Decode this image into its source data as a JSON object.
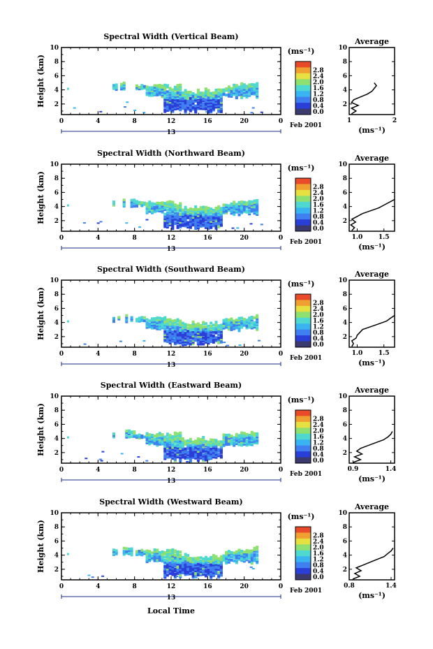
{
  "figure": {
    "x_axis_label": "Local Time",
    "date_label": "Feb 2001",
    "day_label": "13",
    "colorbar_unit": "(ms⁻¹)",
    "colorbar_ticks": [
      "0.0",
      "0.4",
      "0.8",
      "1.2",
      "1.6",
      "2.0",
      "2.4",
      "2.8"
    ],
    "colorbar_colors": [
      "#3a3a6e",
      "#2a3fd8",
      "#3f7ff0",
      "#3ab4f0",
      "#4fd8d0",
      "#8ee070",
      "#e6e040",
      "#f0a030",
      "#e84a2a"
    ],
    "average_title": "Average",
    "average_xlabel": "(ms⁻¹)"
  },
  "chart_data": [
    {
      "type": "heatmap",
      "title": "Spectral Width (Vertical Beam)",
      "xlabel": "Local Time",
      "ylabel": "Height (km)",
      "xlim": [
        0,
        24
      ],
      "ylim": [
        0.5,
        10
      ],
      "x_ticks": [
        "0",
        "4",
        "8",
        "12",
        "16",
        "20",
        "0"
      ],
      "y_ticks": [
        "2",
        "4",
        "6",
        "8",
        "10"
      ],
      "colorbar_range": [
        0,
        2.8
      ],
      "profile": {
        "title": "Average",
        "xlim": [
          1.0,
          2.0
        ],
        "x_ticks": [
          "1",
          "2"
        ],
        "heights": [
          0.6,
          1.0,
          1.4,
          1.8,
          2.2,
          2.6,
          3.0,
          3.4,
          3.8,
          4.2,
          4.6,
          5.0
        ],
        "values": [
          1.05,
          1.15,
          1.05,
          1.2,
          1.05,
          1.1,
          1.25,
          1.4,
          1.5,
          1.55,
          1.6,
          1.55
        ]
      }
    },
    {
      "type": "heatmap",
      "title": "Spectral Width (Northward Beam)",
      "xlabel": "Local Time",
      "ylabel": "Height (km)",
      "xlim": [
        0,
        24
      ],
      "ylim": [
        0.5,
        10
      ],
      "x_ticks": [
        "0",
        "4",
        "8",
        "12",
        "16",
        "20",
        "0"
      ],
      "y_ticks": [
        "2",
        "4",
        "6",
        "8",
        "10"
      ],
      "colorbar_range": [
        0,
        2.8
      ],
      "profile": {
        "title": "Average",
        "xlim": [
          0.85,
          1.7
        ],
        "x_ticks": [
          "1.0",
          "1.5"
        ],
        "heights": [
          0.6,
          1.0,
          1.4,
          1.8,
          2.2,
          2.6,
          3.0,
          3.4,
          3.8,
          4.2,
          4.6,
          5.0
        ],
        "values": [
          0.9,
          0.95,
          0.88,
          0.97,
          0.9,
          1.0,
          1.1,
          1.25,
          1.4,
          1.5,
          1.6,
          1.7
        ]
      }
    },
    {
      "type": "heatmap",
      "title": "Spectral Width (Southward Beam)",
      "xlabel": "Local Time",
      "ylabel": "Height (km)",
      "xlim": [
        0,
        24
      ],
      "ylim": [
        0.5,
        10
      ],
      "x_ticks": [
        "0",
        "4",
        "8",
        "12",
        "16",
        "20",
        "0"
      ],
      "y_ticks": [
        "2",
        "4",
        "6",
        "8",
        "10"
      ],
      "colorbar_range": [
        0,
        2.8
      ],
      "profile": {
        "title": "Average",
        "xlim": [
          0.85,
          1.7
        ],
        "x_ticks": [
          "1.0",
          "1.5"
        ],
        "heights": [
          0.6,
          1.0,
          1.4,
          1.8,
          2.2,
          2.6,
          3.0,
          3.4,
          3.8,
          4.2,
          4.6,
          5.0
        ],
        "values": [
          0.9,
          0.93,
          0.9,
          0.98,
          1.0,
          1.05,
          1.1,
          1.25,
          1.4,
          1.55,
          1.62,
          1.7
        ]
      }
    },
    {
      "type": "heatmap",
      "title": "Spectral Width (Eastward Beam)",
      "xlabel": "Local Time",
      "ylabel": "Height (km)",
      "xlim": [
        0,
        24
      ],
      "ylim": [
        0.5,
        10
      ],
      "x_ticks": [
        "0",
        "4",
        "8",
        "12",
        "16",
        "20",
        "0"
      ],
      "y_ticks": [
        "2",
        "4",
        "6",
        "8",
        "10"
      ],
      "colorbar_range": [
        0,
        2.8
      ],
      "profile": {
        "title": "Average",
        "xlim": [
          0.85,
          1.45
        ],
        "x_ticks": [
          "0.9",
          "1.4"
        ],
        "heights": [
          0.6,
          1.0,
          1.4,
          1.8,
          2.2,
          2.6,
          3.0,
          3.4,
          3.8,
          4.2,
          4.6,
          5.0
        ],
        "values": [
          0.9,
          1.0,
          0.92,
          1.02,
          0.95,
          1.0,
          1.1,
          1.2,
          1.3,
          1.36,
          1.4,
          1.42
        ]
      }
    },
    {
      "type": "heatmap",
      "title": "Spectral Width (Westward Beam)",
      "xlabel": "Local Time",
      "ylabel": "Height (km)",
      "xlim": [
        0,
        24
      ],
      "ylim": [
        0.5,
        10
      ],
      "x_ticks": [
        "0",
        "4",
        "8",
        "12",
        "16",
        "20",
        "0"
      ],
      "y_ticks": [
        "2",
        "4",
        "6",
        "8",
        "10"
      ],
      "colorbar_range": [
        0,
        2.8
      ],
      "profile": {
        "title": "Average",
        "xlim": [
          0.8,
          1.45
        ],
        "x_ticks": [
          "0.8",
          "1.4"
        ],
        "heights": [
          0.6,
          1.0,
          1.4,
          1.8,
          2.2,
          2.6,
          3.0,
          3.4,
          3.8,
          4.2,
          4.6,
          5.0
        ],
        "values": [
          0.85,
          0.95,
          0.88,
          0.97,
          0.9,
          1.0,
          1.1,
          1.2,
          1.3,
          1.35,
          1.4,
          1.43
        ]
      }
    }
  ]
}
